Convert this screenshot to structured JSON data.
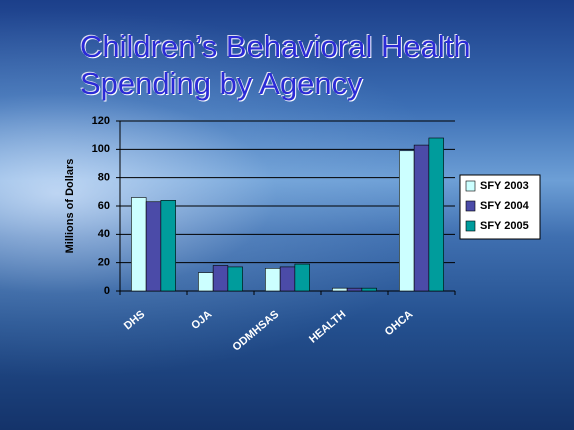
{
  "chart_data": {
    "type": "bar",
    "title": "Children’s Behavioral Health Spending by Agency",
    "y_label": "Millions of Dollars",
    "categories": [
      "DHS",
      "OJA",
      "ODMHSAS",
      "HEALTH",
      "OHCA"
    ],
    "series": [
      {
        "name": "SFY 2003",
        "color": "#ccffff",
        "values": [
          66,
          13,
          16,
          2,
          99
        ]
      },
      {
        "name": "SFY 2004",
        "color": "#4b4ba8",
        "values": [
          63,
          18,
          17,
          2,
          103
        ]
      },
      {
        "name": "SFY 2005",
        "color": "#009c9c",
        "values": [
          64,
          17,
          19,
          2,
          108
        ]
      }
    ],
    "ylim": [
      0,
      120
    ],
    "yticks": [
      0,
      20,
      40,
      60,
      80,
      100,
      120
    ],
    "grid": true
  }
}
